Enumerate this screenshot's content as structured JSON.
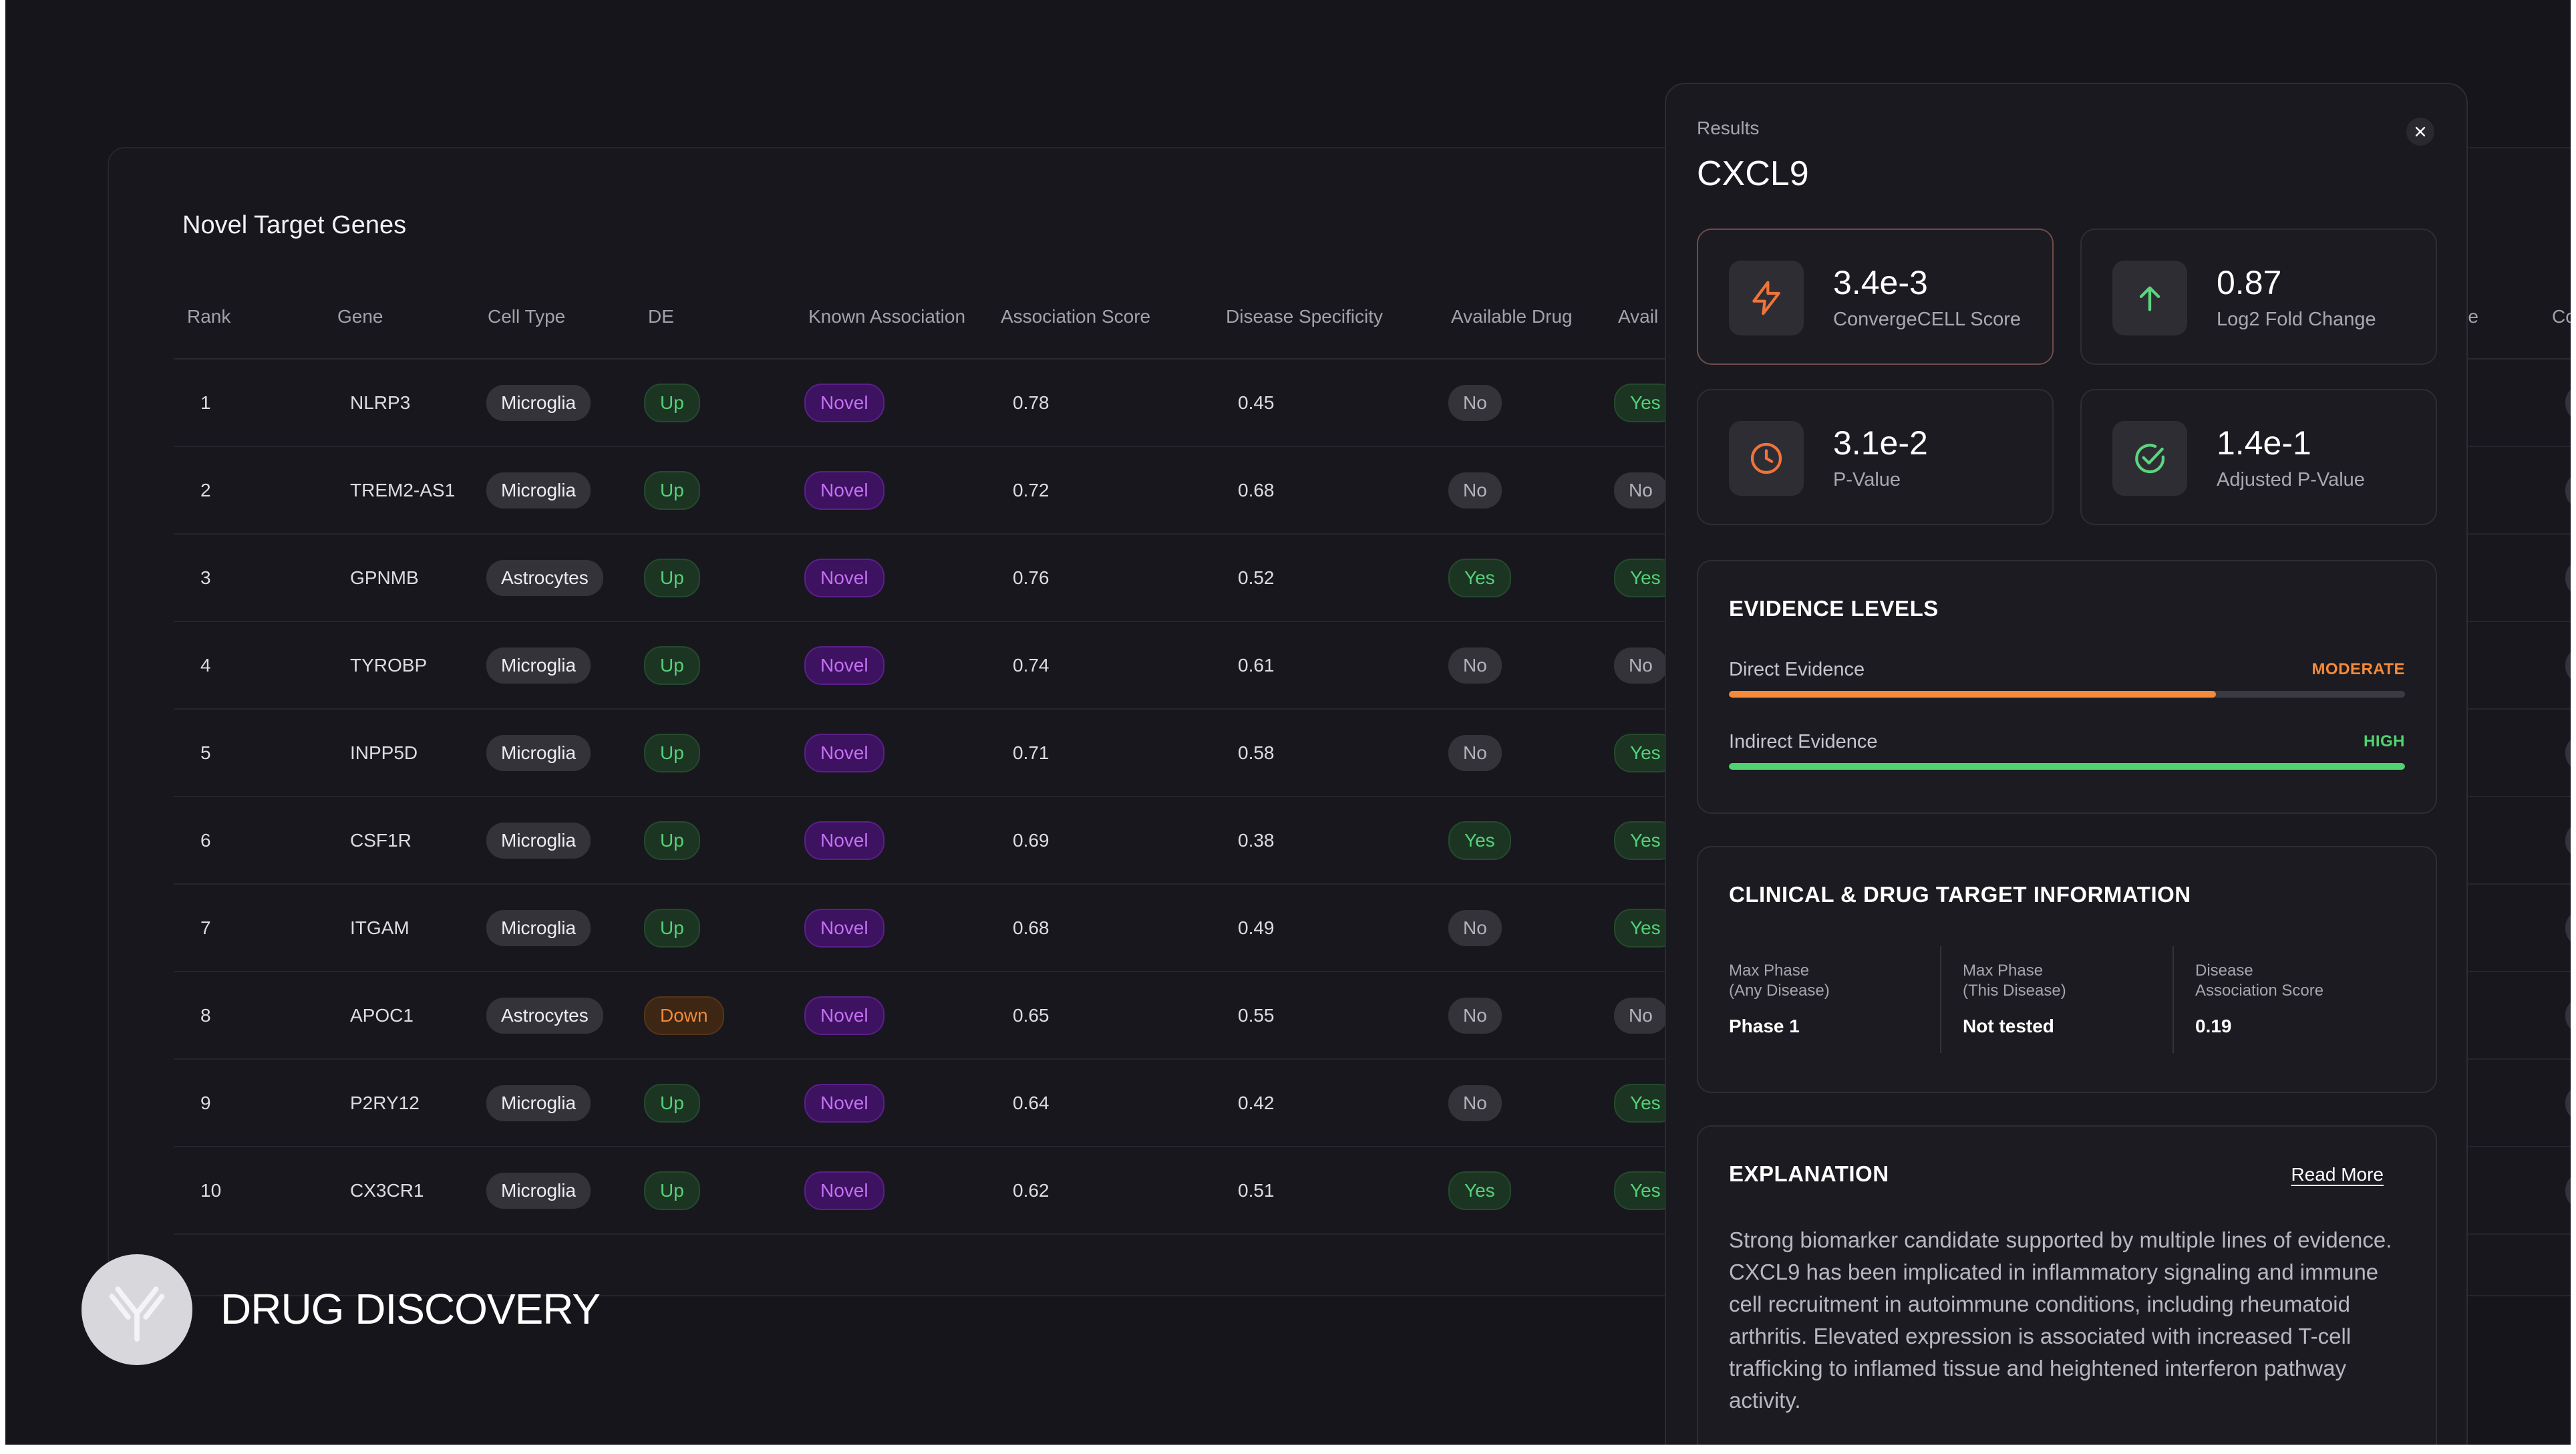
{
  "table": {
    "title": "Novel Target Genes",
    "headers": [
      "Rank",
      "Gene",
      "Cell Type",
      "DE",
      "Known Association",
      "Association Score",
      "Disease Specificity",
      "Available Drug",
      "Avail"
    ],
    "rows": [
      {
        "rank": "1",
        "gene": "NLRP3",
        "cell_type": "Microglia",
        "de": "Up",
        "known": "Novel",
        "assoc": "0.78",
        "spec": "0.45",
        "drug": "No",
        "avail": "Yes",
        "edge": "0"
      },
      {
        "rank": "2",
        "gene": "TREM2-AS1",
        "cell_type": "Microglia",
        "de": "Up",
        "known": "Novel",
        "assoc": "0.72",
        "spec": "0.68",
        "drug": "No",
        "avail": "No",
        "edge": "0"
      },
      {
        "rank": "3",
        "gene": "GPNMB",
        "cell_type": "Astrocytes",
        "de": "Up",
        "known": "Novel",
        "assoc": "0.76",
        "spec": "0.52",
        "drug": "Yes",
        "avail": "Yes",
        "edge": "0"
      },
      {
        "rank": "4",
        "gene": "TYROBP",
        "cell_type": "Microglia",
        "de": "Up",
        "known": "Novel",
        "assoc": "0.74",
        "spec": "0.61",
        "drug": "No",
        "avail": "No",
        "edge": "0"
      },
      {
        "rank": "5",
        "gene": "INPP5D",
        "cell_type": "Microglia",
        "de": "Up",
        "known": "Novel",
        "assoc": "0.71",
        "spec": "0.58",
        "drug": "No",
        "avail": "Yes",
        "edge": "0"
      },
      {
        "rank": "6",
        "gene": "CSF1R",
        "cell_type": "Microglia",
        "de": "Up",
        "known": "Novel",
        "assoc": "0.69",
        "spec": "0.38",
        "drug": "Yes",
        "avail": "Yes",
        "edge": "0"
      },
      {
        "rank": "7",
        "gene": "ITGAM",
        "cell_type": "Microglia",
        "de": "Up",
        "known": "Novel",
        "assoc": "0.68",
        "spec": "0.49",
        "drug": "No",
        "avail": "Yes",
        "edge": "0"
      },
      {
        "rank": "8",
        "gene": "APOC1",
        "cell_type": "Astrocytes",
        "de": "Down",
        "known": "Novel",
        "assoc": "0.65",
        "spec": "0.55",
        "drug": "No",
        "avail": "No",
        "edge": "0"
      },
      {
        "rank": "9",
        "gene": "P2RY12",
        "cell_type": "Microglia",
        "de": "Up",
        "known": "Novel",
        "assoc": "0.64",
        "spec": "0.42",
        "drug": "No",
        "avail": "Yes",
        "edge": "0"
      },
      {
        "rank": "10",
        "gene": "CX3CR1",
        "cell_type": "Microglia",
        "de": "Up",
        "known": "Novel",
        "assoc": "0.62",
        "spec": "0.51",
        "drug": "Yes",
        "avail": "Yes",
        "edge": "0"
      }
    ],
    "edge_headers": [
      "re",
      "Co"
    ]
  },
  "brand": {
    "name": "DRUG DISCOVERY",
    "logo_icon": "antibody-icon"
  },
  "panel": {
    "label": "Results",
    "title": "CXCL9",
    "close_icon": "close-icon",
    "metrics": [
      {
        "value": "3.4e-3",
        "label": "ConvergeCELL Score",
        "icon": "lightning-icon",
        "color": "#f0733a"
      },
      {
        "value": "0.87",
        "label": "Log2 Fold Change",
        "icon": "arrow-up-icon",
        "color": "#5bd67f"
      },
      {
        "value": "3.1e-2",
        "label": "P-Value",
        "icon": "clock-icon",
        "color": "#f0733a"
      },
      {
        "value": "1.4e-1",
        "label": "Adjusted P-Value",
        "icon": "check-circle-icon",
        "color": "#5bd67f"
      }
    ],
    "evidence": {
      "title": "EVIDENCE LEVELS",
      "items": [
        {
          "label": "Direct Evidence",
          "level": "MODERATE",
          "color": "#f58a3a",
          "fraction": 0.72
        },
        {
          "label": "Indirect Evidence",
          "level": "HIGH",
          "color": "#4fd371",
          "fraction": 1.0
        }
      ]
    },
    "clinical": {
      "title": "CLINICAL & DRUG TARGET INFORMATION",
      "columns": [
        {
          "label": "Max Phase\n(Any Disease)",
          "value": "Phase 1"
        },
        {
          "label": "Max Phase\n(This Disease)",
          "value": "Not tested"
        },
        {
          "label": "Disease\nAssociation Score",
          "value": "0.19"
        }
      ]
    },
    "explanation": {
      "title": "EXPLANATION",
      "read_more": "Read More",
      "text": "Strong biomarker candidate supported by multiple lines of evidence. CXCL9 has been implicated in inflammatory signaling and immune cell recruitment in autoimmune conditions, including rheumatoid arthritis. Elevated expression is associated with increased T-cell trafficking to inflamed tissue and heightened interferon pathway activity."
    }
  }
}
